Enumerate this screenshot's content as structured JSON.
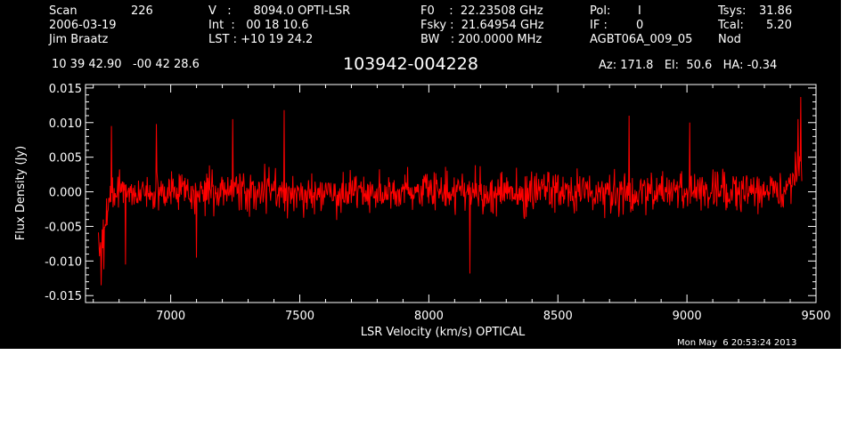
{
  "header": {
    "col1": {
      "line1_label": "Scan",
      "line1_value": "226",
      "line2": "2006-03-19",
      "line3": "Jim Braatz"
    },
    "col2": {
      "line1": "V   :      8094.0 OPTI-LSR",
      "line2": "Int  :   00 18 10.6",
      "line3": "LST : +10 19 24.2"
    },
    "col3": {
      "line1": "F0    :  22.23508 GHz",
      "line2": "Fsky :  21.64954 GHz",
      "line3": "BW   : 200.0000 MHz"
    },
    "col4": {
      "line1_label": "Pol:",
      "line1_value": "I",
      "line2_label": "IF :",
      "line2_value": "0",
      "line3": "AGBT06A_009_05"
    },
    "col5": {
      "line1_label": "Tsys:",
      "line1_value": "31.86",
      "line2_label": "Tcal:",
      "line2_value": "5.20",
      "line3": "Nod"
    },
    "coords": "10 39 42.90   -00 42 28.6",
    "source": "103942-004228",
    "az_el_ha": "Az: 171.8   El:  50.6   HA: -0.34"
  },
  "timestamp": "Mon May  6 20:53:24 2013",
  "chart_data": {
    "type": "line",
    "title": "103942-004228",
    "xlabel": "LSR Velocity (km/s) OPTICAL",
    "ylabel": "Flux Density (Jy)",
    "xlim": [
      6670,
      9500
    ],
    "ylim": [
      -0.016,
      0.0155
    ],
    "xticks": [
      7000,
      7500,
      8000,
      8500,
      9000,
      9500
    ],
    "xtick_labels": [
      "7000",
      "7500",
      "8000",
      "8500",
      "9000",
      "9500"
    ],
    "yticks": [
      -0.015,
      -0.01,
      -0.005,
      0.0,
      0.005,
      0.01,
      0.015
    ],
    "ytick_labels": [
      "-0.015",
      "-0.010",
      "-0.005",
      "0.000",
      "0.005",
      "0.010",
      "0.015"
    ],
    "grid": false,
    "series": [
      {
        "color": "#ff0000",
        "x_range": [
          6720,
          9445
        ],
        "n_points": 1300,
        "noise_rms": 0.0028,
        "features": [
          {
            "x": 6730,
            "y": -0.0135
          },
          {
            "x": 6740,
            "y": -0.0112
          },
          {
            "x": 6770,
            "y": 0.0095
          },
          {
            "x": 6825,
            "y": -0.0105
          },
          {
            "x": 6945,
            "y": 0.0098
          },
          {
            "x": 7100,
            "y": -0.0095
          },
          {
            "x": 7240,
            "y": 0.0105
          },
          {
            "x": 7440,
            "y": 0.0118
          },
          {
            "x": 8160,
            "y": -0.0118
          },
          {
            "x": 8775,
            "y": 0.011
          },
          {
            "x": 9010,
            "y": 0.01
          },
          {
            "x": 9430,
            "y": 0.0105
          },
          {
            "x": 9440,
            "y": 0.0137
          }
        ]
      }
    ]
  }
}
